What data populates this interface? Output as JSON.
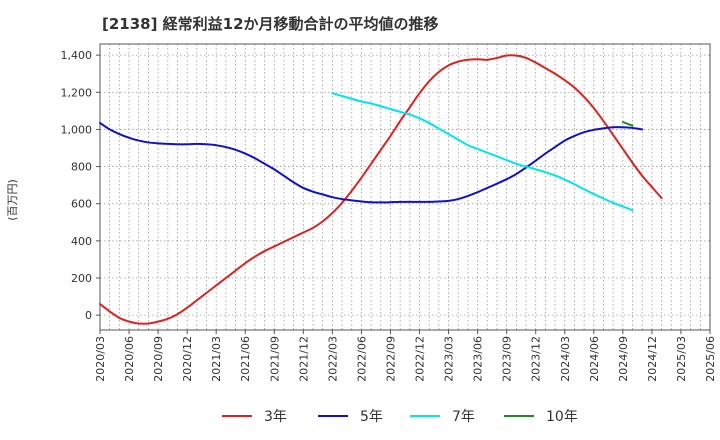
{
  "chart_data": {
    "type": "line",
    "title": "[2138]  経常利益12か月移動合計の平均値の推移",
    "xlabel": "",
    "ylabel": "(百万円)",
    "ylim": [
      -80,
      1460
    ],
    "yticks": [
      0,
      200,
      400,
      600,
      800,
      1000,
      1200,
      1400
    ],
    "ytick_labels": [
      "0",
      "200",
      "400",
      "600",
      "800",
      "1,000",
      "1,200",
      "1,400"
    ],
    "x_tick_labels": [
      "2020/03",
      "2020/06",
      "2020/09",
      "2020/12",
      "2021/03",
      "2021/06",
      "2021/09",
      "2021/12",
      "2022/03",
      "2022/06",
      "2022/09",
      "2022/12",
      "2023/03",
      "2023/06",
      "2023/09",
      "2023/12",
      "2024/03",
      "2024/06",
      "2024/09",
      "2024/12",
      "2025/03",
      "2025/06"
    ],
    "grid": true,
    "legend_position": "bottom",
    "series": [
      {
        "name": "3年",
        "color": "#dd2222",
        "start_index": 0,
        "values": [
          60,
          20,
          -15,
          -35,
          -45,
          -45,
          -35,
          -20,
          5,
          40,
          80,
          120,
          160,
          200,
          240,
          280,
          315,
          345,
          370,
          395,
          420,
          445,
          470,
          505,
          550,
          605,
          670,
          740,
          815,
          890,
          965,
          1045,
          1120,
          1195,
          1260,
          1310,
          1345,
          1365,
          1375,
          1378,
          1375,
          1385,
          1398,
          1398,
          1385,
          1360,
          1330,
          1300,
          1265,
          1225,
          1175,
          1115,
          1045,
          970,
          895,
          820,
          750,
          690,
          630
        ]
      },
      {
        "name": "5年",
        "color": "#1111cc",
        "start_index": 0,
        "values": [
          1035,
          1000,
          975,
          955,
          940,
          930,
          925,
          922,
          920,
          920,
          922,
          920,
          915,
          905,
          890,
          870,
          845,
          815,
          785,
          750,
          715,
          685,
          665,
          650,
          635,
          625,
          618,
          612,
          608,
          607,
          608,
          610,
          610,
          610,
          610,
          612,
          615,
          625,
          642,
          662,
          685,
          708,
          732,
          760,
          795,
          832,
          870,
          905,
          940,
          965,
          985,
          998,
          1006,
          1012,
          1012,
          1008,
          1000
        ]
      },
      {
        "name": "7年",
        "color": "#00e5f0",
        "start_index": 24,
        "values": [
          1195,
          1180,
          1165,
          1150,
          1140,
          1125,
          1110,
          1095,
          1080,
          1060,
          1035,
          1005,
          975,
          945,
          915,
          895,
          875,
          855,
          835,
          815,
          800,
          785,
          770,
          752,
          730,
          705,
          678,
          652,
          628,
          605,
          585,
          565
        ]
      },
      {
        "name": "10年",
        "color": "#228822",
        "start_index": 54,
        "values": [
          1040,
          1020
        ]
      }
    ]
  }
}
